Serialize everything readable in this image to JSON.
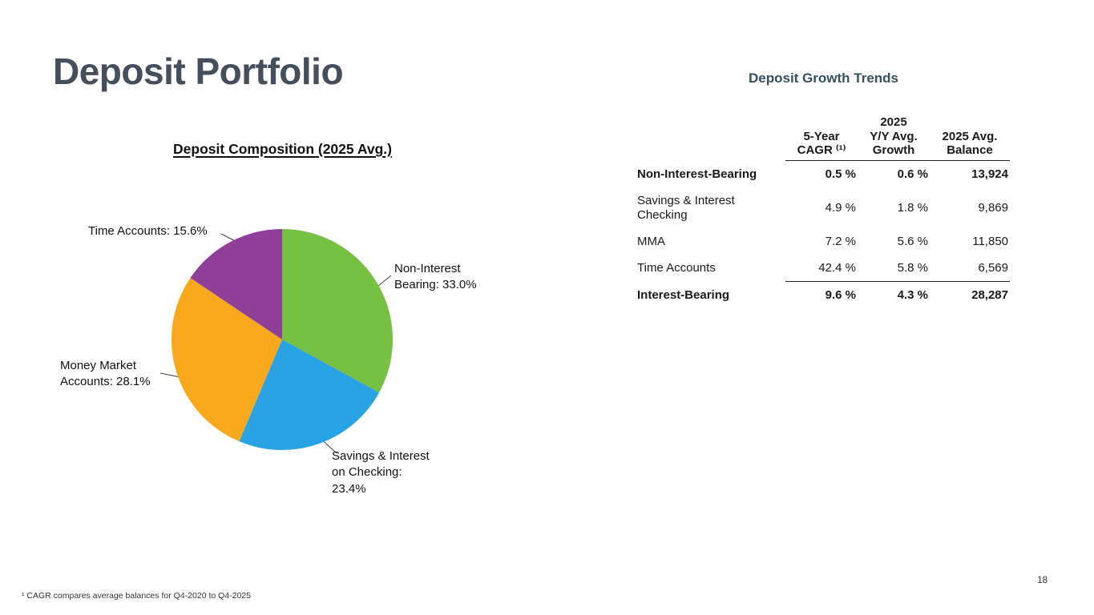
{
  "slide": {
    "title": "Deposit Portfolio",
    "page_number": "18",
    "footnote": "¹ CAGR compares average balances for Q4-2020 to Q4-2025"
  },
  "chart_data": {
    "type": "pie",
    "title": "Deposit Composition (2025 Avg.)",
    "unit": "%",
    "slices": [
      {
        "id": "non-interest-bearing",
        "label": "Non-Interest Bearing",
        "value": 33.0,
        "color": "#76c043",
        "callout": "Non-Interest\nBearing: 33.0%"
      },
      {
        "id": "savings-interest-checking",
        "label": "Savings & Interest on Checking",
        "value": 23.4,
        "color": "#29a3e3",
        "callout": "Savings & Interest\non Checking:\n23.4%"
      },
      {
        "id": "money-market-accounts",
        "label": "Money Market Accounts",
        "value": 28.1,
        "color": "#f8a81c",
        "callout": "Money Market\nAccounts: 28.1%"
      },
      {
        "id": "time-accounts",
        "label": "Time Accounts",
        "value": 15.6,
        "color": "#8f3f97",
        "callout": "Time Accounts: 15.6%"
      }
    ]
  },
  "table": {
    "title": "Deposit Growth Trends",
    "columns": [
      "5-Year\nCAGR ⁽¹⁾",
      "2025\nY/Y Avg.\nGrowth",
      "2025 Avg.\nBalance"
    ],
    "rows": [
      {
        "label": "Non-Interest-Bearing",
        "cagr": "0.5 %",
        "growth": "0.6 %",
        "balance": "13,924"
      },
      {
        "label": "Savings & Interest\nChecking",
        "cagr": "4.9 %",
        "growth": "1.8 %",
        "balance": "9,869"
      },
      {
        "label": "MMA",
        "cagr": "7.2 %",
        "growth": "5.6 %",
        "balance": "11,850"
      },
      {
        "label": "Time Accounts",
        "cagr": "42.4 %",
        "growth": "5.8 %",
        "balance": "6,569"
      },
      {
        "label": "Interest-Bearing",
        "cagr": "9.6 %",
        "growth": "4.3 %",
        "balance": "28,287"
      }
    ]
  }
}
